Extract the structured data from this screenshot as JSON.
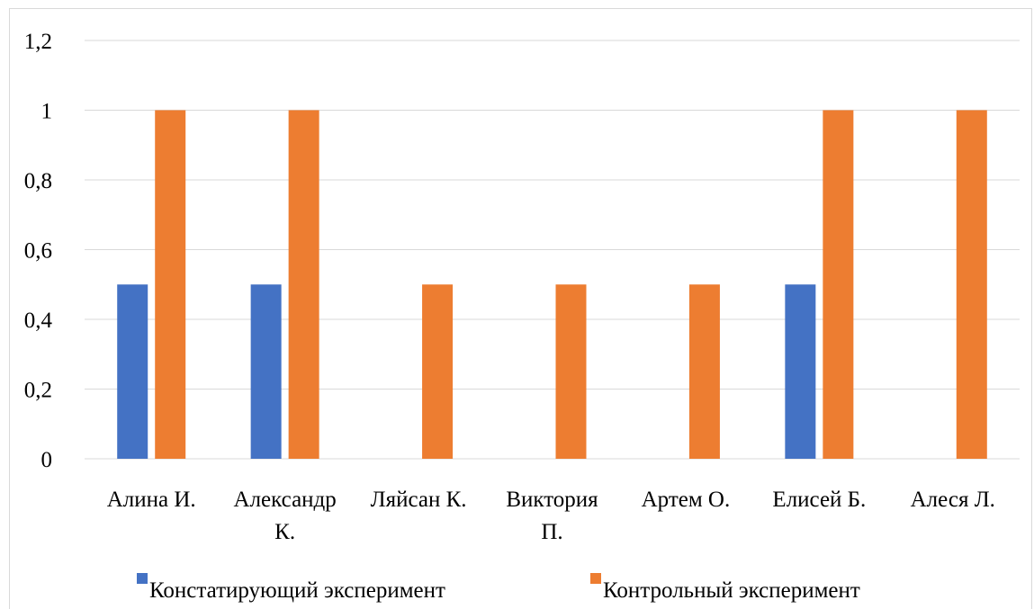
{
  "chart_data": {
    "type": "bar",
    "title": "",
    "xlabel": "",
    "ylabel": "",
    "ylim": [
      0,
      1.2
    ],
    "y_ticks": [
      "0",
      "0,2",
      "0,4",
      "0,6",
      "0,8",
      "1",
      "1,2"
    ],
    "y_tick_values": [
      0,
      0.2,
      0.4,
      0.6,
      0.8,
      1.0,
      1.2
    ],
    "grid": true,
    "legend_position": "bottom",
    "categories": [
      [
        "Алина И."
      ],
      [
        "Александр",
        "К."
      ],
      [
        "Ляйсан К."
      ],
      [
        "Виктория",
        "П."
      ],
      [
        "Артем О."
      ],
      [
        "Елисей Б."
      ],
      [
        "Алеся Л."
      ]
    ],
    "series": [
      {
        "name": "Констатирующий эксперимент",
        "color": "#4472C4",
        "values": [
          0.5,
          0.5,
          0,
          0,
          0,
          0.5,
          0
        ]
      },
      {
        "name": "Контрольный эксперимент",
        "color": "#ED7D31",
        "values": [
          1,
          1,
          0.5,
          0.5,
          0.5,
          1,
          1
        ]
      }
    ],
    "colors": {
      "gridline": "#d9d9d9",
      "axis": "#d9d9d9"
    }
  }
}
